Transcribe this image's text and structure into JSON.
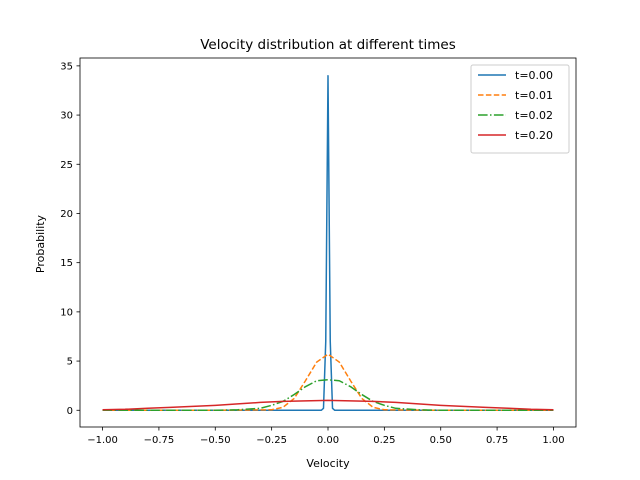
{
  "chart_data": {
    "type": "line",
    "title": "Velocity distribution at different times",
    "xlabel": "Velocity",
    "ylabel": "Probability",
    "xlim": [
      -1.1,
      1.1
    ],
    "ylim": [
      -1.7,
      35.8
    ],
    "xticks": [
      -1.0,
      -0.75,
      -0.5,
      -0.25,
      0.0,
      0.25,
      0.5,
      0.75,
      1.0
    ],
    "xtick_labels": [
      "−1.00",
      "−0.75",
      "−0.50",
      "−0.25",
      "0.00",
      "0.25",
      "0.50",
      "0.75",
      "1.00"
    ],
    "yticks": [
      0,
      5,
      10,
      15,
      20,
      25,
      30,
      35
    ],
    "ytick_labels": [
      "0",
      "5",
      "10",
      "15",
      "20",
      "25",
      "30",
      "35"
    ],
    "grid": false,
    "legend_position": "top-right",
    "series": [
      {
        "name": "t=0.00",
        "color": "#1f77b4",
        "dash": "solid",
        "x": [
          -1.0,
          -0.5,
          -0.2,
          -0.05,
          -0.03,
          -0.02,
          -0.01,
          0.0,
          0.01,
          0.02,
          0.03,
          0.05,
          0.2,
          0.5,
          1.0
        ],
        "y": [
          0.0,
          0.0,
          0.0,
          0.0,
          0.0,
          0.2,
          7.0,
          34.0,
          7.0,
          0.2,
          0.0,
          0.0,
          0.0,
          0.0,
          0.0
        ]
      },
      {
        "name": "t=0.01",
        "color": "#ff7f0e",
        "dash": "dashed",
        "x": [
          -1.0,
          -0.5,
          -0.25,
          -0.2,
          -0.15,
          -0.1,
          -0.05,
          0.0,
          0.05,
          0.1,
          0.15,
          0.2,
          0.25,
          0.5,
          1.0
        ],
        "y": [
          0.0,
          0.0,
          0.05,
          0.3,
          1.2,
          3.0,
          4.9,
          5.7,
          4.9,
          3.0,
          1.2,
          0.3,
          0.05,
          0.0,
          0.0
        ],
        "markers": "none"
      },
      {
        "name": "t=0.02",
        "color": "#2ca02c",
        "dash": "dashdot",
        "x": [
          -1.0,
          -0.5,
          -0.4,
          -0.3,
          -0.25,
          -0.2,
          -0.15,
          -0.1,
          -0.05,
          0.0,
          0.05,
          0.1,
          0.15,
          0.2,
          0.25,
          0.3,
          0.4,
          0.5,
          1.0
        ],
        "y": [
          0.0,
          0.0,
          0.05,
          0.2,
          0.5,
          0.9,
          1.6,
          2.4,
          3.0,
          3.1,
          3.0,
          2.4,
          1.6,
          0.9,
          0.5,
          0.2,
          0.05,
          0.0,
          0.0
        ]
      },
      {
        "name": "t=0.20",
        "color": "#d62728",
        "dash": "solid",
        "x": [
          -1.0,
          -0.9,
          -0.8,
          -0.7,
          -0.6,
          -0.5,
          -0.4,
          -0.3,
          -0.2,
          -0.1,
          0.0,
          0.1,
          0.2,
          0.3,
          0.4,
          0.5,
          0.6,
          0.7,
          0.8,
          0.9,
          1.0
        ],
        "y": [
          0.05,
          0.1,
          0.2,
          0.3,
          0.4,
          0.5,
          0.65,
          0.8,
          0.9,
          0.95,
          1.0,
          0.95,
          0.9,
          0.8,
          0.65,
          0.5,
          0.4,
          0.3,
          0.2,
          0.1,
          0.05
        ]
      }
    ]
  }
}
